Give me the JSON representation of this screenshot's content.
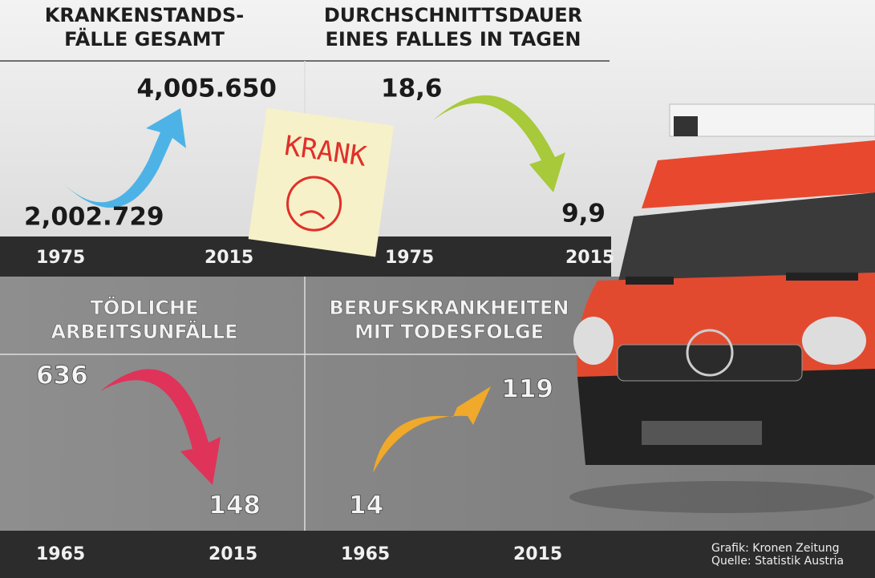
{
  "panels": [
    {
      "title": [
        "KRANKENSTANDS-",
        "FÄLLE GESAMT"
      ],
      "start_value": "2,002.729",
      "end_value": "4,005.650",
      "start_year": "1975",
      "end_year": "2015"
    },
    {
      "title": [
        "DURCHSCHNITTSDAUER",
        "EINES FALLES IN TAGEN"
      ],
      "start_value": "18,6",
      "end_value": "9,9",
      "start_year": "1975",
      "end_year": "2015"
    },
    {
      "title": [
        "TÖDLICHE",
        "ARBEITSUNFÄLLE"
      ],
      "start_value": "636",
      "end_value": "148",
      "start_year": "1965",
      "end_year": "2015"
    },
    {
      "title": [
        "BERUFSKRANKHEITEN",
        "MIT TODESFOLGE"
      ],
      "start_value": "14",
      "end_value": "119",
      "start_year": "1965",
      "end_year": "2015"
    }
  ],
  "note": "KRANK",
  "credits": [
    "Grafik: Kronen Zeitung",
    "Quelle: Statistik Austria"
  ]
}
